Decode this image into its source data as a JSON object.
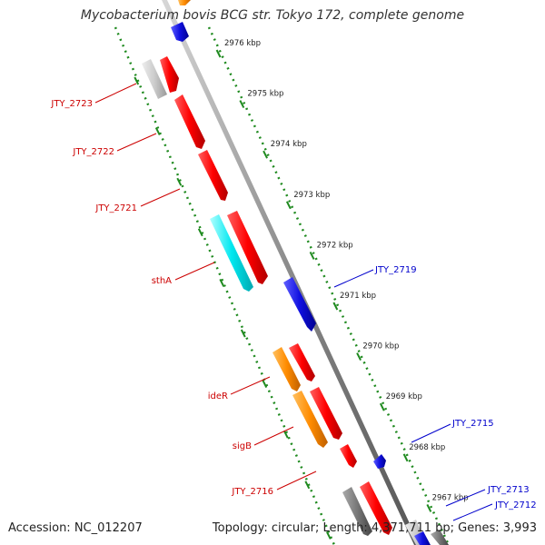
{
  "title": "Mycobacterium bovis BCG str. Tokyo 172, complete genome",
  "footer": {
    "accession_text": "Accession: NC_012207",
    "summary_text": "Topology: circular; Length: 4,371,711 bp; Genes: 3,993"
  },
  "scale_ticks": [
    "2976 kbp",
    "2975 kbp",
    "2974 kbp",
    "2973 kbp",
    "2972 kbp",
    "2971 kbp",
    "2970 kbp",
    "2969 kbp",
    "2968 kbp",
    "2967 kbp"
  ],
  "gene_labels_forward": [
    "JTY_2723",
    "JTY_2722",
    "JTY_2721",
    "sthA",
    "ideR",
    "sigB",
    "JTY_2716"
  ],
  "gene_labels_reverse": [
    "JTY_2719",
    "JTY_2715",
    "JTY_2713",
    "JTY_2712"
  ],
  "colors": {
    "forward_label": "#cc0000",
    "reverse_label": "#0000cc",
    "backbone": "#888888",
    "ruler": "#1f8a1f",
    "red_gene": "#ff1010",
    "blue_gene": "#1414e8",
    "orange_gene": "#ff8c00",
    "cyan_gene": "#00e8f0",
    "grey_gene": "#777777",
    "light_grey_gene": "#c8c8c8"
  }
}
